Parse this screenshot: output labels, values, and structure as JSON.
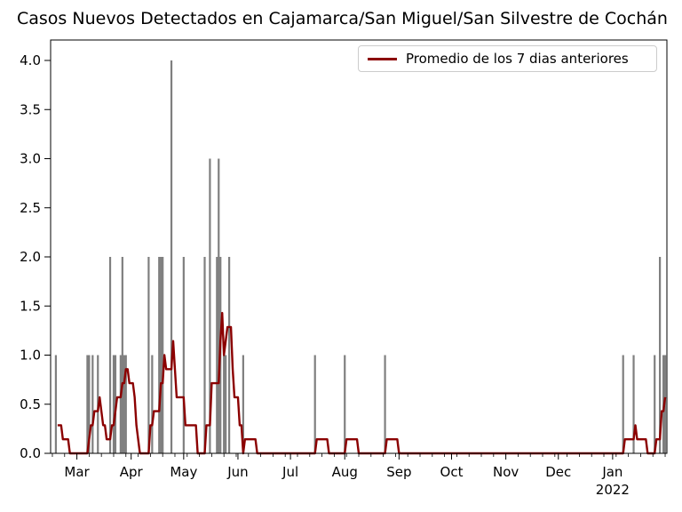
{
  "title": "Casos Nuevos Detectados en Cajamarca/San Miguel/San Silvestre de Cochán",
  "legend": {
    "label": "Promedio de los 7 dias anteriores"
  },
  "colors": {
    "background": "#ffffff",
    "bar": "#7f7f7f",
    "line": "#8b0000",
    "spine": "#000000",
    "tick": "#000000",
    "text": "#000000",
    "legend_border": "#cccccc"
  },
  "axes": {
    "y_tick_labels": [
      "0.0",
      "0.5",
      "1.0",
      "1.5",
      "2.0",
      "2.5",
      "3.0",
      "3.5",
      "4.0"
    ],
    "y_tick_values": [
      0,
      0.5,
      1,
      1.5,
      2,
      2.5,
      3,
      3.5,
      4
    ],
    "x_month_ticks": [
      {
        "label": "Mar",
        "date": "2021-03-01"
      },
      {
        "label": "Apr",
        "date": "2021-04-01"
      },
      {
        "label": "May",
        "date": "2021-05-01"
      },
      {
        "label": "Jun",
        "date": "2021-06-01"
      },
      {
        "label": "Jul",
        "date": "2021-07-01"
      },
      {
        "label": "Aug",
        "date": "2021-08-01"
      },
      {
        "label": "Sep",
        "date": "2021-09-01"
      },
      {
        "label": "Oct",
        "date": "2021-10-01"
      },
      {
        "label": "Nov",
        "date": "2021-11-01"
      },
      {
        "label": "Dec",
        "date": "2021-12-01"
      },
      {
        "label": "Jan",
        "date": "2022-01-01"
      }
    ],
    "year_label": {
      "label": "2022",
      "date": "2022-01-01"
    },
    "minor_x_tick_interval_days": 7,
    "grid": "off",
    "legend_position": "upper right"
  },
  "chart_data": {
    "type": "bar+line",
    "start_date": "2021-02-14",
    "end_date": "2022-01-31",
    "total_days": 352,
    "ylim": [
      0,
      4.21
    ],
    "bar_series_name": "Casos nuevos diarios",
    "bars": [
      [
        "2021-02-17",
        1
      ],
      [
        "2021-03-07",
        1
      ],
      [
        "2021-03-08",
        1
      ],
      [
        "2021-03-10",
        1
      ],
      [
        "2021-03-13",
        1
      ],
      [
        "2021-03-20",
        2
      ],
      [
        "2021-03-22",
        1
      ],
      [
        "2021-03-23",
        1
      ],
      [
        "2021-03-26",
        1
      ],
      [
        "2021-03-27",
        2
      ],
      [
        "2021-03-28",
        1
      ],
      [
        "2021-03-29",
        1
      ],
      [
        "2021-04-11",
        2
      ],
      [
        "2021-04-13",
        1
      ],
      [
        "2021-04-17",
        2
      ],
      [
        "2021-04-18",
        2
      ],
      [
        "2021-04-19",
        2
      ],
      [
        "2021-04-24",
        4
      ],
      [
        "2021-05-01",
        2
      ],
      [
        "2021-05-13",
        2
      ],
      [
        "2021-05-16",
        3
      ],
      [
        "2021-05-20",
        2
      ],
      [
        "2021-05-21",
        3
      ],
      [
        "2021-05-22",
        2
      ],
      [
        "2021-05-24",
        1
      ],
      [
        "2021-05-25",
        1
      ],
      [
        "2021-05-27",
        2
      ],
      [
        "2021-06-04",
        1
      ],
      [
        "2021-07-15",
        1
      ],
      [
        "2021-08-01",
        1
      ],
      [
        "2021-08-24",
        1
      ],
      [
        "2022-01-07",
        1
      ],
      [
        "2022-01-13",
        1
      ],
      [
        "2022-01-25",
        1
      ],
      [
        "2022-01-28",
        2
      ],
      [
        "2022-01-30",
        1
      ],
      [
        "2022-01-31",
        1
      ]
    ],
    "line": {
      "name": "Promedio de los 7 dias anteriores",
      "points": [
        [
          "2021-02-18",
          0.286
        ],
        [
          "2021-02-20",
          0.286
        ],
        [
          "2021-02-21",
          0.143
        ],
        [
          "2021-02-24",
          0.143
        ],
        [
          "2021-02-25",
          0
        ],
        [
          "2021-03-07",
          0
        ],
        [
          "2021-03-08",
          0.143
        ],
        [
          "2021-03-09",
          0.286
        ],
        [
          "2021-03-10",
          0.286
        ],
        [
          "2021-03-11",
          0.429
        ],
        [
          "2021-03-13",
          0.429
        ],
        [
          "2021-03-14",
          0.571
        ],
        [
          "2021-03-15",
          0.429
        ],
        [
          "2021-03-16",
          0.286
        ],
        [
          "2021-03-17",
          0.286
        ],
        [
          "2021-03-18",
          0.143
        ],
        [
          "2021-03-20",
          0.143
        ],
        [
          "2021-03-21",
          0.286
        ],
        [
          "2021-03-22",
          0.286
        ],
        [
          "2021-03-23",
          0.429
        ],
        [
          "2021-03-24",
          0.571
        ],
        [
          "2021-03-26",
          0.571
        ],
        [
          "2021-03-27",
          0.714
        ],
        [
          "2021-03-28",
          0.714
        ],
        [
          "2021-03-29",
          0.857
        ],
        [
          "2021-03-30",
          0.857
        ],
        [
          "2021-03-31",
          0.714
        ],
        [
          "2021-04-02",
          0.714
        ],
        [
          "2021-04-03",
          0.571
        ],
        [
          "2021-04-04",
          0.286
        ],
        [
          "2021-04-05",
          0.143
        ],
        [
          "2021-04-06",
          0
        ],
        [
          "2021-04-11",
          0
        ],
        [
          "2021-04-12",
          0.286
        ],
        [
          "2021-04-13",
          0.286
        ],
        [
          "2021-04-14",
          0.429
        ],
        [
          "2021-04-17",
          0.429
        ],
        [
          "2021-04-18",
          0.714
        ],
        [
          "2021-04-19",
          0.714
        ],
        [
          "2021-04-20",
          1.0
        ],
        [
          "2021-04-21",
          0.857
        ],
        [
          "2021-04-24",
          0.857
        ],
        [
          "2021-04-25",
          1.143
        ],
        [
          "2021-04-26",
          0.857
        ],
        [
          "2021-04-27",
          0.571
        ],
        [
          "2021-05-01",
          0.571
        ],
        [
          "2021-05-02",
          0.286
        ],
        [
          "2021-05-08",
          0.286
        ],
        [
          "2021-05-09",
          0
        ],
        [
          "2021-05-13",
          0
        ],
        [
          "2021-05-14",
          0.286
        ],
        [
          "2021-05-16",
          0.286
        ],
        [
          "2021-05-17",
          0.714
        ],
        [
          "2021-05-21",
          0.714
        ],
        [
          "2021-05-22",
          1.143
        ],
        [
          "2021-05-23",
          1.429
        ],
        [
          "2021-05-24",
          1.0
        ],
        [
          "2021-05-25",
          1.143
        ],
        [
          "2021-05-26",
          1.286
        ],
        [
          "2021-05-28",
          1.286
        ],
        [
          "2021-05-29",
          0.857
        ],
        [
          "2021-05-30",
          0.571
        ],
        [
          "2021-06-01",
          0.571
        ],
        [
          "2021-06-02",
          0.286
        ],
        [
          "2021-06-03",
          0.286
        ],
        [
          "2021-06-04",
          0
        ],
        [
          "2021-06-05",
          0.143
        ],
        [
          "2021-06-11",
          0.143
        ],
        [
          "2021-06-12",
          0
        ],
        [
          "2021-07-15",
          0
        ],
        [
          "2021-07-16",
          0.143
        ],
        [
          "2021-07-22",
          0.143
        ],
        [
          "2021-07-23",
          0
        ],
        [
          "2021-08-01",
          0
        ],
        [
          "2021-08-02",
          0.143
        ],
        [
          "2021-08-08",
          0.143
        ],
        [
          "2021-08-09",
          0
        ],
        [
          "2021-08-24",
          0
        ],
        [
          "2021-08-25",
          0.143
        ],
        [
          "2021-08-31",
          0.143
        ],
        [
          "2021-09-01",
          0
        ],
        [
          "2022-01-07",
          0
        ],
        [
          "2022-01-08",
          0.143
        ],
        [
          "2022-01-13",
          0.143
        ],
        [
          "2022-01-14",
          0.286
        ],
        [
          "2022-01-15",
          0.143
        ],
        [
          "2022-01-20",
          0.143
        ],
        [
          "2022-01-21",
          0
        ],
        [
          "2022-01-25",
          0
        ],
        [
          "2022-01-26",
          0.143
        ],
        [
          "2022-01-28",
          0.143
        ],
        [
          "2022-01-29",
          0.429
        ],
        [
          "2022-01-30",
          0.429
        ],
        [
          "2022-01-31",
          0.571
        ]
      ]
    }
  }
}
